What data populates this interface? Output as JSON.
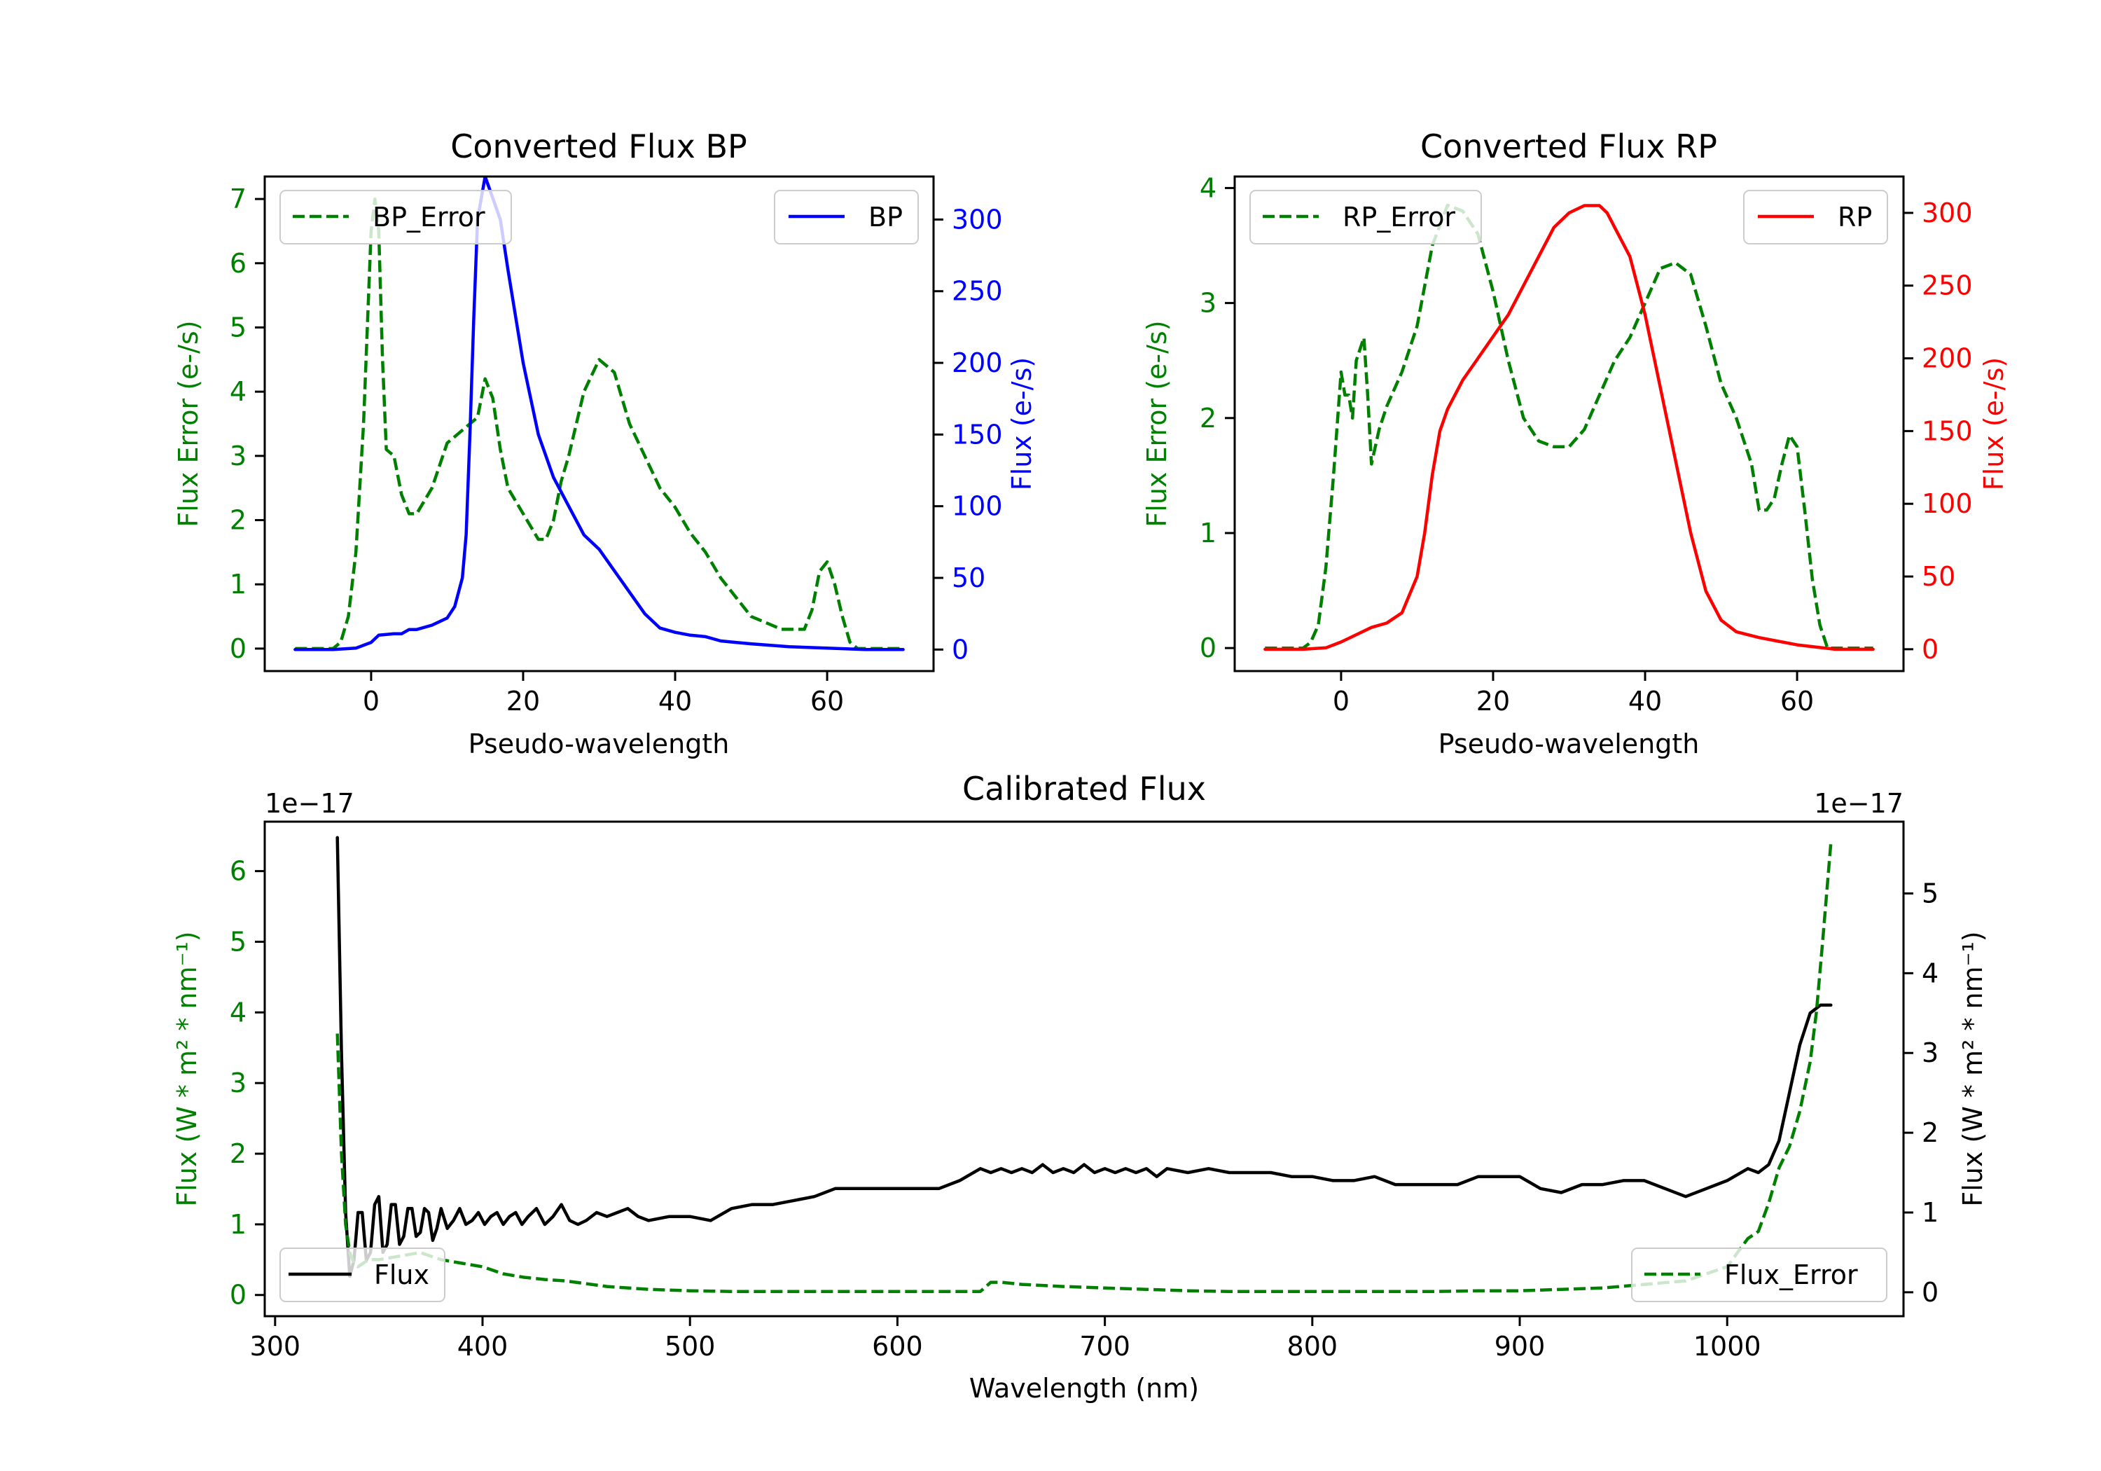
{
  "figure": {
    "background": "#ffffff"
  },
  "chart_data": [
    {
      "type": "line",
      "id": "bp",
      "title": "Converted Flux BP",
      "xlabel": "Pseudo-wavelength",
      "xlim": [
        -14,
        74
      ],
      "xticks": [
        0,
        20,
        40,
        60
      ],
      "left_axis": {
        "label": "Flux Error (e-/s)",
        "color": "#008000",
        "lim": [
          -0.35,
          7.35
        ],
        "ticks": [
          0,
          1,
          2,
          3,
          4,
          5,
          6,
          7
        ]
      },
      "right_axis": {
        "label": "Flux (e-/s)",
        "color": "#0000ff",
        "lim": [
          -15,
          330
        ],
        "ticks": [
          0,
          50,
          100,
          150,
          200,
          250,
          300
        ]
      },
      "legend_left": {
        "position": "upper left",
        "label": "BP_Error"
      },
      "legend_right": {
        "position": "upper right",
        "label": "BP"
      },
      "series": [
        {
          "name": "BP_Error",
          "axis": "left",
          "color": "#008000",
          "style": "dashed",
          "x": [
            -10,
            -5,
            -4,
            -3,
            -2,
            -1,
            0,
            0.5,
            1,
            1.5,
            2,
            3,
            4,
            5,
            6,
            8,
            10,
            12,
            14,
            15,
            16,
            17,
            18,
            20,
            22,
            23,
            24,
            25,
            26,
            28,
            30,
            32,
            34,
            36,
            38,
            40,
            42,
            44,
            46,
            48,
            50,
            52,
            54,
            56,
            57,
            58,
            59,
            60,
            61,
            62,
            63,
            64,
            66,
            68,
            70
          ],
          "y": [
            0.0,
            0.0,
            0.1,
            0.5,
            1.5,
            3.5,
            6.5,
            7.0,
            6.5,
            4.5,
            3.1,
            3.0,
            2.4,
            2.1,
            2.1,
            2.5,
            3.2,
            3.4,
            3.6,
            4.2,
            3.9,
            3.1,
            2.5,
            2.1,
            1.7,
            1.7,
            2.0,
            2.6,
            3.0,
            4.0,
            4.5,
            4.3,
            3.5,
            3.0,
            2.5,
            2.2,
            1.8,
            1.5,
            1.1,
            0.8,
            0.5,
            0.4,
            0.3,
            0.3,
            0.3,
            0.6,
            1.2,
            1.35,
            1.0,
            0.5,
            0.1,
            0.0,
            0.0,
            0.0,
            0.0
          ]
        },
        {
          "name": "BP",
          "axis": "right",
          "color": "#0000ff",
          "style": "solid",
          "x": [
            -10,
            -5,
            -2,
            0,
            1,
            3,
            4,
            5,
            6,
            8,
            10,
            11,
            12,
            12.5,
            13,
            13.5,
            14,
            15,
            16,
            17,
            18,
            20,
            22,
            24,
            26,
            28,
            30,
            32,
            34,
            36,
            38,
            40,
            42,
            44,
            46,
            48,
            50,
            55,
            60,
            65,
            70
          ],
          "y": [
            0,
            0,
            1,
            5,
            10,
            11,
            11,
            14,
            14,
            17,
            22,
            30,
            50,
            80,
            150,
            230,
            300,
            330,
            315,
            300,
            265,
            200,
            150,
            120,
            100,
            80,
            70,
            55,
            40,
            25,
            15,
            12,
            10,
            9,
            6,
            5,
            4,
            2,
            1,
            0,
            0
          ]
        }
      ]
    },
    {
      "type": "line",
      "id": "rp",
      "title": "Converted Flux RP",
      "xlabel": "Pseudo-wavelength",
      "xlim": [
        -14,
        74
      ],
      "xticks": [
        0,
        20,
        40,
        60
      ],
      "left_axis": {
        "label": "Flux Error (e-/s)",
        "color": "#008000",
        "lim": [
          -0.2,
          4.1
        ],
        "ticks": [
          0,
          1,
          2,
          3,
          4
        ]
      },
      "right_axis": {
        "label": "Flux (e-/s)",
        "color": "#ff0000",
        "lim": [
          -15,
          325
        ],
        "ticks": [
          0,
          50,
          100,
          150,
          200,
          250,
          300
        ]
      },
      "legend_left": {
        "position": "upper left",
        "label": "RP_Error"
      },
      "legend_right": {
        "position": "upper right",
        "label": "RP"
      },
      "series": [
        {
          "name": "RP_Error",
          "axis": "left",
          "color": "#008000",
          "style": "dashed",
          "x": [
            -10,
            -5,
            -4,
            -3,
            -2,
            -1,
            0,
            0.5,
            1,
            1.5,
            2,
            3,
            3.5,
            4,
            5,
            6,
            8,
            10,
            12,
            14,
            16,
            18,
            20,
            22,
            24,
            26,
            28,
            30,
            32,
            34,
            36,
            38,
            40,
            42,
            44,
            46,
            48,
            50,
            52,
            54,
            55,
            56,
            57,
            58,
            59,
            60,
            61,
            62,
            63,
            64,
            66,
            70
          ],
          "y": [
            0.0,
            0.0,
            0.05,
            0.2,
            0.7,
            1.5,
            2.4,
            2.2,
            2.2,
            2.0,
            2.5,
            2.7,
            2.2,
            1.6,
            1.9,
            2.1,
            2.4,
            2.8,
            3.5,
            3.85,
            3.8,
            3.6,
            3.1,
            2.5,
            2.0,
            1.8,
            1.75,
            1.75,
            1.9,
            2.2,
            2.5,
            2.7,
            3.0,
            3.3,
            3.35,
            3.25,
            2.8,
            2.3,
            2.0,
            1.6,
            1.2,
            1.2,
            1.3,
            1.6,
            1.85,
            1.75,
            1.2,
            0.6,
            0.2,
            0.0,
            0.0,
            0.0
          ]
        },
        {
          "name": "RP",
          "axis": "right",
          "color": "#ff0000",
          "style": "solid",
          "x": [
            -10,
            -5,
            -2,
            0,
            2,
            4,
            6,
            8,
            10,
            11,
            12,
            13,
            14,
            16,
            18,
            20,
            22,
            24,
            26,
            28,
            30,
            32,
            34,
            35,
            36,
            38,
            40,
            42,
            44,
            46,
            48,
            50,
            52,
            55,
            60,
            65,
            70
          ],
          "y": [
            0,
            0,
            1,
            5,
            10,
            15,
            18,
            25,
            50,
            80,
            120,
            150,
            165,
            185,
            200,
            215,
            230,
            250,
            270,
            290,
            300,
            305,
            305,
            300,
            290,
            270,
            230,
            180,
            130,
            80,
            40,
            20,
            12,
            8,
            3,
            0,
            0
          ]
        }
      ]
    },
    {
      "type": "line",
      "id": "calibrated",
      "title": "Calibrated Flux",
      "xlabel": "Wavelength (nm)",
      "xlim": [
        295,
        1085
      ],
      "xticks": [
        300,
        400,
        500,
        600,
        700,
        800,
        900,
        1000
      ],
      "left_axis": {
        "label": "Flux (W * m² * nm⁻¹)",
        "color": "#008000",
        "offset_text": "1e−17",
        "lim": [
          -0.3,
          6.7
        ],
        "ticks": [
          0,
          1,
          2,
          3,
          4,
          5,
          6
        ]
      },
      "right_axis": {
        "label": "Flux (W * m² * nm⁻¹)",
        "color": "#000000",
        "offset_text": "1e−17",
        "lim": [
          -0.3,
          5.9
        ],
        "ticks": [
          0,
          1,
          2,
          3,
          4,
          5
        ]
      },
      "legend_left": {
        "position": "lower left",
        "label": "Flux"
      },
      "legend_right": {
        "position": "lower right",
        "label": "Flux_Error"
      },
      "series": [
        {
          "name": "Flux",
          "axis": "right",
          "color": "#000000",
          "style": "solid",
          "x": [
            330,
            332,
            334,
            336,
            338,
            340,
            342,
            344,
            346,
            348,
            350,
            352,
            354,
            356,
            358,
            360,
            362,
            364,
            366,
            368,
            370,
            372,
            374,
            376,
            378,
            380,
            383,
            386,
            389,
            392,
            395,
            398,
            401,
            404,
            407,
            410,
            413,
            416,
            419,
            422,
            426,
            430,
            434,
            438,
            442,
            446,
            450,
            455,
            460,
            465,
            470,
            475,
            480,
            490,
            500,
            510,
            520,
            530,
            540,
            550,
            560,
            570,
            580,
            590,
            600,
            610,
            620,
            630,
            640,
            645,
            650,
            655,
            660,
            665,
            670,
            675,
            680,
            685,
            690,
            695,
            700,
            705,
            710,
            715,
            720,
            725,
            730,
            740,
            750,
            760,
            770,
            780,
            790,
            800,
            810,
            820,
            830,
            840,
            850,
            860,
            870,
            880,
            890,
            900,
            910,
            920,
            930,
            940,
            950,
            960,
            970,
            980,
            990,
            1000,
            1010,
            1015,
            1020,
            1025,
            1030,
            1035,
            1040,
            1045,
            1050
          ],
          "y": [
            5.7,
            3.0,
            1.0,
            0.2,
            0.4,
            1.0,
            1.0,
            0.4,
            0.5,
            1.1,
            1.2,
            0.5,
            0.6,
            1.1,
            1.1,
            0.6,
            0.7,
            1.05,
            1.05,
            0.7,
            0.75,
            1.05,
            1.0,
            0.65,
            0.8,
            1.05,
            0.8,
            0.9,
            1.05,
            0.85,
            0.9,
            1.0,
            0.85,
            0.95,
            1.0,
            0.85,
            0.95,
            1.0,
            0.85,
            0.95,
            1.05,
            0.85,
            0.95,
            1.1,
            0.9,
            0.85,
            0.9,
            1.0,
            0.95,
            1.0,
            1.05,
            0.95,
            0.9,
            0.95,
            0.95,
            0.9,
            1.05,
            1.1,
            1.1,
            1.15,
            1.2,
            1.3,
            1.3,
            1.3,
            1.3,
            1.3,
            1.3,
            1.4,
            1.55,
            1.5,
            1.55,
            1.5,
            1.55,
            1.5,
            1.6,
            1.5,
            1.55,
            1.5,
            1.6,
            1.5,
            1.55,
            1.5,
            1.55,
            1.5,
            1.55,
            1.45,
            1.55,
            1.5,
            1.55,
            1.5,
            1.5,
            1.5,
            1.45,
            1.45,
            1.4,
            1.4,
            1.45,
            1.35,
            1.35,
            1.35,
            1.35,
            1.45,
            1.45,
            1.45,
            1.3,
            1.25,
            1.35,
            1.35,
            1.4,
            1.4,
            1.3,
            1.2,
            1.3,
            1.4,
            1.55,
            1.5,
            1.6,
            1.9,
            2.5,
            3.1,
            3.5,
            3.6,
            3.6
          ]
        },
        {
          "name": "Flux_Error",
          "axis": "left",
          "color": "#008000",
          "style": "dashed",
          "x": [
            330,
            332,
            334,
            336,
            338,
            340,
            345,
            350,
            360,
            370,
            380,
            390,
            400,
            410,
            420,
            430,
            440,
            460,
            480,
            500,
            520,
            540,
            560,
            580,
            600,
            620,
            630,
            640,
            645,
            650,
            660,
            680,
            700,
            720,
            740,
            760,
            780,
            800,
            820,
            840,
            860,
            880,
            900,
            920,
            940,
            960,
            980,
            990,
            1000,
            1005,
            1010,
            1015,
            1020,
            1025,
            1030,
            1035,
            1040,
            1043,
            1046,
            1050
          ],
          "y": [
            3.7,
            2.0,
            1.0,
            0.6,
            0.45,
            0.4,
            0.5,
            0.5,
            0.55,
            0.6,
            0.5,
            0.45,
            0.4,
            0.3,
            0.25,
            0.22,
            0.2,
            0.12,
            0.08,
            0.06,
            0.05,
            0.05,
            0.05,
            0.05,
            0.05,
            0.05,
            0.05,
            0.05,
            0.18,
            0.18,
            0.15,
            0.12,
            0.1,
            0.08,
            0.06,
            0.05,
            0.05,
            0.05,
            0.05,
            0.05,
            0.05,
            0.06,
            0.06,
            0.08,
            0.1,
            0.15,
            0.2,
            0.3,
            0.4,
            0.6,
            0.8,
            0.9,
            1.3,
            1.8,
            2.1,
            2.6,
            3.3,
            4.0,
            5.0,
            6.4
          ]
        }
      ]
    }
  ]
}
